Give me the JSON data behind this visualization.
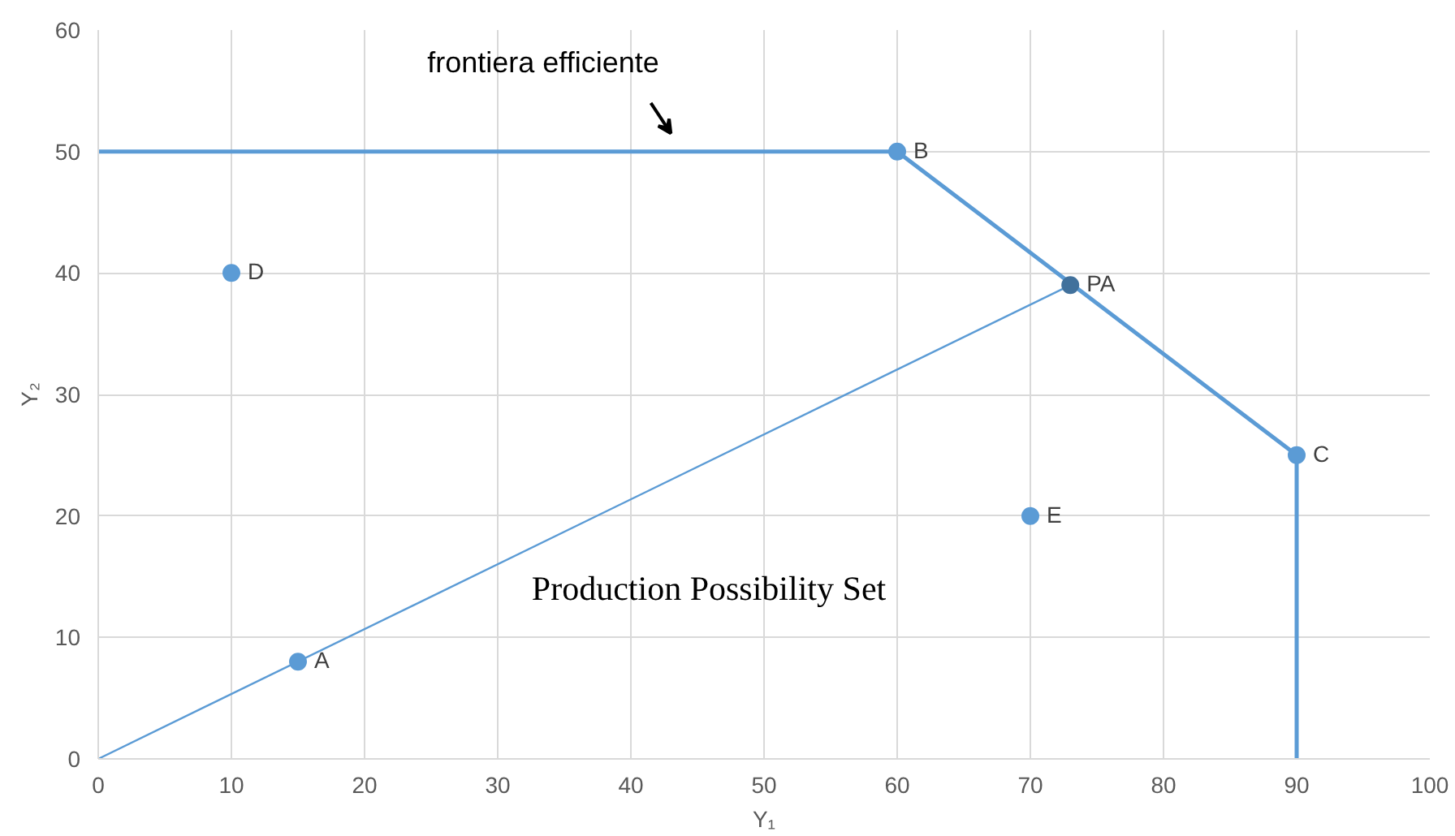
{
  "chart_data": {
    "type": "scatter",
    "xlabel": "Y₁",
    "ylabel": "Y₂",
    "xlim": [
      0,
      100
    ],
    "ylim": [
      0,
      60
    ],
    "xticks": [
      0,
      10,
      20,
      30,
      40,
      50,
      60,
      70,
      80,
      90,
      100
    ],
    "yticks": [
      0,
      10,
      20,
      30,
      40,
      50,
      60
    ],
    "grid": true,
    "marker": "circle",
    "series": [
      {
        "type": "line",
        "color": "#5b9bd5",
        "x": [
          0,
          60,
          90,
          90
        ],
        "values": [
          50,
          50,
          25,
          0
        ],
        "marker": "none"
      },
      {
        "type": "line",
        "color": "#5b9bd5",
        "x": [
          0,
          73
        ],
        "values": [
          0,
          39
        ],
        "marker": "none"
      },
      {
        "name": "A",
        "color": "#5b9bd5",
        "x": [
          15
        ],
        "values": [
          8
        ]
      },
      {
        "name": "B",
        "color": "#5b9bd5",
        "x": [
          60
        ],
        "values": [
          50
        ]
      },
      {
        "name": "C",
        "color": "#5b9bd5",
        "x": [
          90
        ],
        "values": [
          25
        ]
      },
      {
        "name": "D",
        "color": "#5b9bd5",
        "x": [
          10
        ],
        "values": [
          40
        ]
      },
      {
        "name": "E",
        "color": "#5b9bd5",
        "x": [
          70
        ],
        "values": [
          20
        ]
      },
      {
        "name": "PA",
        "color": "#41719c",
        "x": [
          73
        ],
        "values": [
          39
        ]
      }
    ],
    "annotations": [
      {
        "text": "frontiera efficiente",
        "x": 43,
        "y": 50
      },
      "Production Possibility Set"
    ]
  }
}
